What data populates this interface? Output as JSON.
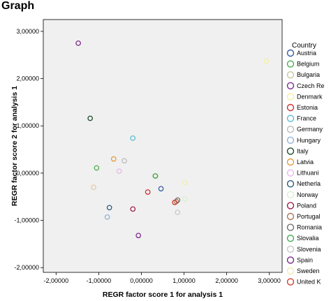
{
  "page": {
    "title": "Graph"
  },
  "chart_data": {
    "type": "scatter",
    "title": "",
    "xlabel": "REGR factor score   1 for analysis 1",
    "ylabel": "REGR factor score   2 for analysis 1",
    "xlim": [
      -2.3,
      3.3
    ],
    "ylim": [
      -2.1,
      3.25
    ],
    "xticks": [
      -2,
      -1,
      0,
      1,
      2,
      3
    ],
    "xtick_labels": [
      "-2,00000",
      "-1,00000",
      "0,00000",
      "1,00000",
      "2,00000",
      "3,00000"
    ],
    "yticks": [
      -2,
      -1,
      0,
      1,
      2,
      3
    ],
    "ytick_labels": [
      "-2,00000",
      "-1,00000",
      "0,00000",
      "1,00000",
      "2,00000",
      "3,00000"
    ],
    "grid": false,
    "plot_background": "#f0f0f0",
    "legend_title": "Country",
    "legend_position": "right",
    "series": [
      {
        "name": "Austria",
        "color": "#3b5ba5",
        "x": [
          0.46
        ],
        "y": [
          -0.33
        ]
      },
      {
        "name": "Belgium",
        "color": "#4caf50",
        "x": [
          -1.05
        ],
        "y": [
          0.11
        ]
      },
      {
        "name": "Bulgaria",
        "color": "#c8c8a0",
        "x": [
          0.32
        ],
        "y": [
          -0.06
        ]
      },
      {
        "name": "Czech Re",
        "color": "#7b2d8e",
        "x": [
          -1.48
        ],
        "y": [
          2.75
        ]
      },
      {
        "name": "Denmark",
        "color": "#f5f0a0",
        "x": [
          2.93
        ],
        "y": [
          2.37
        ]
      },
      {
        "name": "Estonia",
        "color": "#cc3333",
        "x": [
          0.15
        ],
        "y": [
          -0.4
        ]
      },
      {
        "name": "France",
        "color": "#5bbcd6",
        "x": [
          -0.2
        ],
        "y": [
          0.74
        ]
      },
      {
        "name": "Germany",
        "color": "#bbbbbb",
        "x": [
          -0.4
        ],
        "y": [
          0.26
        ]
      },
      {
        "name": "Hungary",
        "color": "#8fb2d8",
        "x": [
          -0.8
        ],
        "y": [
          -0.93
        ]
      },
      {
        "name": "Italy",
        "color": "#1e4d2b",
        "x": [
          -1.2
        ],
        "y": [
          1.16
        ]
      },
      {
        "name": "Latvia",
        "color": "#e59a3a",
        "x": [
          -0.65
        ],
        "y": [
          0.3
        ]
      },
      {
        "name": "Lithuani",
        "color": "#e8b8e8",
        "x": [
          -0.52
        ],
        "y": [
          0.04
        ]
      },
      {
        "name": "Netherla",
        "color": "#2e5a7a",
        "x": [
          -0.75
        ],
        "y": [
          -0.73
        ]
      },
      {
        "name": "Norway",
        "color": "#d8f0d0",
        "x": [
          1.02
        ],
        "y": [
          -0.55
        ]
      },
      {
        "name": "Poland",
        "color": "#a02050",
        "x": [
          -0.2
        ],
        "y": [
          -0.76
        ]
      },
      {
        "name": "Portugal",
        "color": "#a87858",
        "x": [
          0.82
        ],
        "y": [
          -0.6
        ]
      },
      {
        "name": "Romania",
        "color": "#707070",
        "x": [
          0.85
        ],
        "y": [
          -0.57
        ]
      },
      {
        "name": "Slovalia",
        "color": "#44aa55",
        "x": [
          0.33
        ],
        "y": [
          -0.06
        ]
      },
      {
        "name": "Slovenia",
        "color": "#c8c8c8",
        "x": [
          0.85
        ],
        "y": [
          -0.83
        ]
      },
      {
        "name": "Spain",
        "color": "#7a2a8a",
        "x": [
          -0.07
        ],
        "y": [
          -1.32
        ]
      },
      {
        "name": "Sweden",
        "color": "#f0eeb0",
        "x": [
          1.02
        ],
        "y": [
          -0.2
        ]
      },
      {
        "name": "United K",
        "color": "#d04030",
        "x": [
          0.78
        ],
        "y": [
          -0.62
        ]
      }
    ]
  },
  "legend_extra": [
    {
      "color": "#e8c8a8",
      "x": -1.12,
      "y": -0.3
    }
  ]
}
